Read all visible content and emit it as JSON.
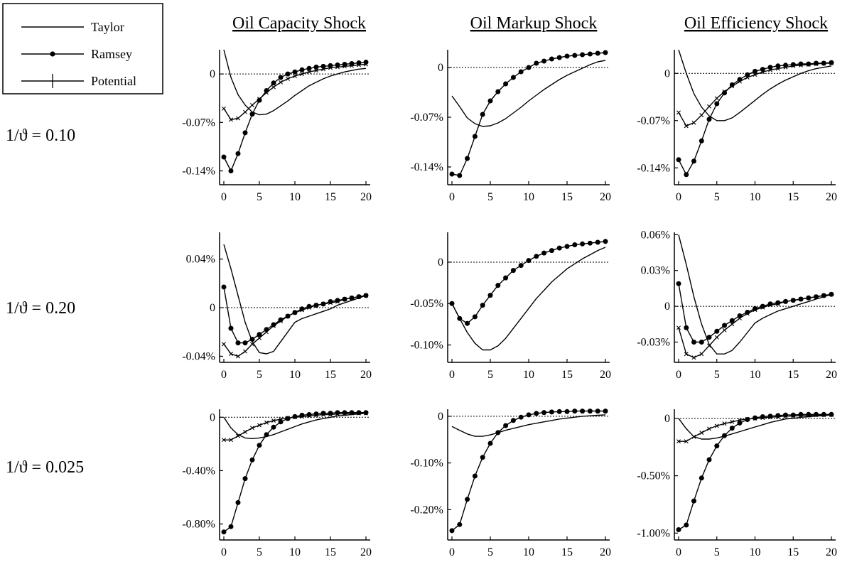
{
  "legend": {
    "items": [
      {
        "label": "Taylor",
        "marker": "none"
      },
      {
        "label": "Ramsey",
        "marker": "dot"
      },
      {
        "label": "Potential",
        "marker": "cross"
      }
    ]
  },
  "columns": [
    "Oil Capacity Shock",
    "Oil Markup Shock",
    "Oil Efficiency Shock"
  ],
  "rows": [
    "1/ϑ = 0.10",
    "1/ϑ = 0.20",
    "1/ϑ = 0.025"
  ],
  "chart_data": [
    {
      "type": "line",
      "row": 0,
      "col": 0,
      "x": [
        0,
        1,
        2,
        3,
        4,
        5,
        6,
        7,
        8,
        9,
        10,
        11,
        12,
        13,
        14,
        15,
        16,
        17,
        18,
        19,
        20
      ],
      "ylim": [
        -0.16,
        0.035
      ],
      "yticks": [
        0,
        -0.07,
        -0.14
      ],
      "yticklabels": [
        "0",
        "-0.07%",
        "-0.14%"
      ],
      "xticks": [
        0,
        5,
        10,
        15,
        20
      ],
      "xticklabels": [
        "0",
        "5",
        "10",
        "15",
        "20"
      ],
      "series": [
        {
          "name": "Taylor",
          "values": [
            0.035,
            -0.005,
            -0.03,
            -0.045,
            -0.055,
            -0.059,
            -0.058,
            -0.053,
            -0.046,
            -0.039,
            -0.031,
            -0.024,
            -0.017,
            -0.012,
            -0.007,
            -0.003,
            0.0,
            0.003,
            0.005,
            0.007,
            0.008
          ]
        },
        {
          "name": "Ramsey",
          "values": [
            -0.12,
            -0.14,
            -0.115,
            -0.085,
            -0.058,
            -0.038,
            -0.024,
            -0.013,
            -0.005,
            0.0,
            0.003,
            0.006,
            0.008,
            0.01,
            0.011,
            0.012,
            0.013,
            0.014,
            0.015,
            0.016,
            0.017
          ]
        },
        {
          "name": "Potential",
          "values": [
            -0.05,
            -0.066,
            -0.064,
            -0.055,
            -0.045,
            -0.036,
            -0.027,
            -0.019,
            -0.012,
            -0.007,
            -0.003,
            0.0,
            0.003,
            0.005,
            0.007,
            0.009,
            0.01,
            0.011,
            0.012,
            0.013,
            0.014
          ]
        }
      ]
    },
    {
      "type": "line",
      "row": 0,
      "col": 1,
      "x": [
        0,
        1,
        2,
        3,
        4,
        5,
        6,
        7,
        8,
        9,
        10,
        11,
        12,
        13,
        14,
        15,
        16,
        17,
        18,
        19,
        20
      ],
      "ylim": [
        -0.165,
        0.025
      ],
      "yticks": [
        0,
        -0.07,
        -0.14
      ],
      "yticklabels": [
        "0",
        "-0.07%",
        "-0.14%"
      ],
      "xticks": [
        0,
        5,
        10,
        15,
        20
      ],
      "xticklabels": [
        "0",
        "5",
        "10",
        "15",
        "20"
      ],
      "series": [
        {
          "name": "Taylor",
          "values": [
            -0.04,
            -0.055,
            -0.071,
            -0.079,
            -0.083,
            -0.082,
            -0.078,
            -0.072,
            -0.064,
            -0.056,
            -0.047,
            -0.039,
            -0.031,
            -0.024,
            -0.017,
            -0.011,
            -0.006,
            -0.001,
            0.004,
            0.008,
            0.01
          ]
        },
        {
          "name": "Ramsey",
          "values": [
            -0.15,
            -0.152,
            -0.128,
            -0.097,
            -0.066,
            -0.047,
            -0.034,
            -0.023,
            -0.014,
            -0.006,
            0.0,
            0.006,
            0.009,
            0.012,
            0.014,
            0.016,
            0.017,
            0.018,
            0.019,
            0.02,
            0.021
          ]
        }
      ]
    },
    {
      "type": "line",
      "row": 0,
      "col": 2,
      "x": [
        0,
        1,
        2,
        3,
        4,
        5,
        6,
        7,
        8,
        9,
        10,
        11,
        12,
        13,
        14,
        15,
        16,
        17,
        18,
        19,
        20
      ],
      "ylim": [
        -0.165,
        0.035
      ],
      "yticks": [
        0,
        -0.07,
        -0.14
      ],
      "yticklabels": [
        "0",
        "-0.07%",
        "-0.14%"
      ],
      "xticks": [
        0,
        5,
        10,
        15,
        20
      ],
      "xticklabels": [
        "0",
        "5",
        "10",
        "15",
        "20"
      ],
      "series": [
        {
          "name": "Taylor",
          "values": [
            0.035,
            0.0,
            -0.03,
            -0.05,
            -0.063,
            -0.07,
            -0.07,
            -0.066,
            -0.058,
            -0.049,
            -0.04,
            -0.031,
            -0.023,
            -0.016,
            -0.01,
            -0.005,
            0.0,
            0.004,
            0.007,
            0.009,
            0.011
          ]
        },
        {
          "name": "Ramsey",
          "values": [
            -0.128,
            -0.15,
            -0.13,
            -0.1,
            -0.068,
            -0.045,
            -0.029,
            -0.017,
            -0.009,
            -0.002,
            0.003,
            0.006,
            0.009,
            0.011,
            0.012,
            0.013,
            0.014,
            0.014,
            0.015,
            0.015,
            0.016
          ]
        },
        {
          "name": "Potential",
          "values": [
            -0.058,
            -0.078,
            -0.073,
            -0.062,
            -0.049,
            -0.037,
            -0.027,
            -0.019,
            -0.012,
            -0.006,
            -0.002,
            0.002,
            0.005,
            0.007,
            0.009,
            0.011,
            0.012,
            0.013,
            0.014,
            0.015,
            0.015
          ]
        }
      ]
    },
    {
      "type": "line",
      "row": 1,
      "col": 0,
      "x": [
        0,
        1,
        2,
        3,
        4,
        5,
        6,
        7,
        8,
        9,
        10,
        11,
        12,
        13,
        14,
        15,
        16,
        17,
        18,
        19,
        20
      ],
      "ylim": [
        -0.045,
        0.062
      ],
      "yticks": [
        0.04,
        0,
        -0.04
      ],
      "yticklabels": [
        "0.04%",
        "0",
        "-0.04%"
      ],
      "xticks": [
        0,
        5,
        10,
        15,
        20
      ],
      "xticklabels": [
        "0",
        "5",
        "10",
        "15",
        "20"
      ],
      "series": [
        {
          "name": "Taylor",
          "values": [
            0.052,
            0.032,
            0.01,
            -0.012,
            -0.028,
            -0.037,
            -0.038,
            -0.036,
            -0.028,
            -0.02,
            -0.012,
            -0.009,
            -0.007,
            -0.005,
            -0.003,
            -0.001,
            0.002,
            0.004,
            0.006,
            0.008,
            0.01
          ]
        },
        {
          "name": "Ramsey",
          "values": [
            0.017,
            -0.017,
            -0.029,
            -0.029,
            -0.026,
            -0.022,
            -0.018,
            -0.014,
            -0.01,
            -0.007,
            -0.004,
            -0.001,
            0.001,
            0.002,
            0.003,
            0.005,
            0.006,
            0.007,
            0.008,
            0.009,
            0.01
          ]
        },
        {
          "name": "Potential",
          "values": [
            -0.03,
            -0.038,
            -0.04,
            -0.036,
            -0.03,
            -0.025,
            -0.02,
            -0.015,
            -0.011,
            -0.007,
            -0.004,
            -0.002,
            0.0,
            0.002,
            0.003,
            0.004,
            0.005,
            0.007,
            0.008,
            0.009,
            0.01
          ]
        }
      ]
    },
    {
      "type": "line",
      "row": 1,
      "col": 1,
      "x": [
        0,
        1,
        2,
        3,
        4,
        5,
        6,
        7,
        8,
        9,
        10,
        11,
        12,
        13,
        14,
        15,
        16,
        17,
        18,
        19,
        20
      ],
      "ylim": [
        -0.121,
        0.036
      ],
      "yticks": [
        0,
        -0.05,
        -0.1
      ],
      "yticklabels": [
        "0",
        "-0.05%",
        "-0.10%"
      ],
      "xticks": [
        0,
        5,
        10,
        15,
        20
      ],
      "xticklabels": [
        "0",
        "5",
        "10",
        "15",
        "20"
      ],
      "series": [
        {
          "name": "Taylor",
          "values": [
            -0.05,
            -0.068,
            -0.085,
            -0.098,
            -0.106,
            -0.106,
            -0.101,
            -0.092,
            -0.08,
            -0.068,
            -0.056,
            -0.044,
            -0.034,
            -0.024,
            -0.016,
            -0.008,
            -0.002,
            0.004,
            0.009,
            0.014,
            0.018
          ]
        },
        {
          "name": "Ramsey",
          "values": [
            -0.05,
            -0.068,
            -0.074,
            -0.066,
            -0.052,
            -0.04,
            -0.028,
            -0.019,
            -0.01,
            -0.004,
            0.002,
            0.007,
            0.011,
            0.014,
            0.017,
            0.019,
            0.021,
            0.022,
            0.023,
            0.024,
            0.025
          ]
        }
      ]
    },
    {
      "type": "line",
      "row": 1,
      "col": 2,
      "x": [
        0,
        1,
        2,
        3,
        4,
        5,
        6,
        7,
        8,
        9,
        10,
        11,
        12,
        13,
        14,
        15,
        16,
        17,
        18,
        19,
        20
      ],
      "ylim": [
        -0.047,
        0.062
      ],
      "yticks": [
        0.06,
        0.03,
        0,
        -0.03
      ],
      "yticklabels": [
        "0.06%",
        "0.03%",
        "0",
        "-0.03%"
      ],
      "xticks": [
        0,
        5,
        10,
        15,
        20
      ],
      "xticklabels": [
        "0",
        "5",
        "10",
        "15",
        "20"
      ],
      "series": [
        {
          "name": "Taylor",
          "values": [
            0.06,
            0.035,
            0.008,
            -0.015,
            -0.032,
            -0.04,
            -0.04,
            -0.037,
            -0.03,
            -0.022,
            -0.014,
            -0.01,
            -0.007,
            -0.004,
            -0.002,
            0.0,
            0.002,
            0.004,
            0.006,
            0.008,
            0.01
          ]
        },
        {
          "name": "Ramsey",
          "values": [
            0.019,
            -0.018,
            -0.03,
            -0.03,
            -0.026,
            -0.021,
            -0.016,
            -0.012,
            -0.008,
            -0.005,
            -0.002,
            0.0,
            0.002,
            0.003,
            0.004,
            0.005,
            0.006,
            0.007,
            0.008,
            0.009,
            0.01
          ]
        },
        {
          "name": "Potential",
          "values": [
            -0.018,
            -0.04,
            -0.043,
            -0.04,
            -0.033,
            -0.026,
            -0.02,
            -0.015,
            -0.01,
            -0.006,
            -0.003,
            -0.001,
            0.001,
            0.002,
            0.004,
            0.005,
            0.006,
            0.007,
            0.008,
            0.009,
            0.01
          ]
        }
      ]
    },
    {
      "type": "line",
      "row": 2,
      "col": 0,
      "x": [
        0,
        1,
        2,
        3,
        4,
        5,
        6,
        7,
        8,
        9,
        10,
        11,
        12,
        13,
        14,
        15,
        16,
        17,
        18,
        19,
        20
      ],
      "ylim": [
        -0.92,
        0.06
      ],
      "yticks": [
        0,
        -0.4,
        -0.8
      ],
      "yticklabels": [
        "0",
        "-0.40%",
        "-0.80%"
      ],
      "xticks": [
        0,
        5,
        10,
        15,
        20
      ],
      "xticklabels": [
        "0",
        "5",
        "10",
        "15",
        "20"
      ],
      "series": [
        {
          "name": "Taylor",
          "values": [
            0.0,
            -0.08,
            -0.13,
            -0.155,
            -0.16,
            -0.155,
            -0.145,
            -0.13,
            -0.11,
            -0.09,
            -0.07,
            -0.05,
            -0.035,
            -0.02,
            -0.01,
            0.0,
            0.01,
            0.015,
            0.02,
            0.025,
            0.03
          ]
        },
        {
          "name": "Ramsey",
          "values": [
            -0.86,
            -0.82,
            -0.64,
            -0.46,
            -0.32,
            -0.21,
            -0.13,
            -0.075,
            -0.035,
            -0.01,
            0.005,
            0.015,
            0.02,
            0.025,
            0.03,
            0.03,
            0.035,
            0.035,
            0.035,
            0.035,
            0.035
          ]
        },
        {
          "name": "Potential",
          "values": [
            -0.17,
            -0.17,
            -0.14,
            -0.11,
            -0.08,
            -0.06,
            -0.04,
            -0.025,
            -0.015,
            -0.005,
            0.0,
            0.005,
            0.01,
            0.015,
            0.02,
            0.02,
            0.025,
            0.025,
            0.03,
            0.03,
            0.03
          ]
        }
      ]
    },
    {
      "type": "line",
      "row": 2,
      "col": 1,
      "x": [
        0,
        1,
        2,
        3,
        4,
        5,
        6,
        7,
        8,
        9,
        10,
        11,
        12,
        13,
        14,
        15,
        16,
        17,
        18,
        19,
        20
      ],
      "ylim": [
        -0.265,
        0.015
      ],
      "yticks": [
        0,
        -0.1,
        -0.2
      ],
      "yticklabels": [
        "0",
        "-0.10%",
        "-0.20%"
      ],
      "xticks": [
        0,
        5,
        10,
        15,
        20
      ],
      "xticklabels": [
        "0",
        "5",
        "10",
        "15",
        "20"
      ],
      "series": [
        {
          "name": "Taylor",
          "values": [
            -0.022,
            -0.03,
            -0.038,
            -0.043,
            -0.043,
            -0.04,
            -0.035,
            -0.03,
            -0.026,
            -0.022,
            -0.018,
            -0.015,
            -0.012,
            -0.009,
            -0.006,
            -0.004,
            -0.002,
            0.0,
            0.001,
            0.002,
            0.003
          ]
        },
        {
          "name": "Ramsey",
          "values": [
            -0.245,
            -0.232,
            -0.178,
            -0.128,
            -0.088,
            -0.058,
            -0.035,
            -0.02,
            -0.009,
            -0.002,
            0.003,
            0.006,
            0.008,
            0.009,
            0.01,
            0.01,
            0.011,
            0.011,
            0.011,
            0.011,
            0.011
          ]
        }
      ]
    },
    {
      "type": "line",
      "row": 2,
      "col": 2,
      "x": [
        0,
        1,
        2,
        3,
        4,
        5,
        6,
        7,
        8,
        9,
        10,
        11,
        12,
        13,
        14,
        15,
        16,
        17,
        18,
        19,
        20
      ],
      "ylim": [
        -1.06,
        0.08
      ],
      "yticks": [
        0,
        -0.5,
        -1.0
      ],
      "yticklabels": [
        "0",
        "-0.50%",
        "-1.00%"
      ],
      "xticks": [
        0,
        5,
        10,
        15,
        20
      ],
      "xticklabels": [
        "0",
        "5",
        "10",
        "15",
        "20"
      ],
      "series": [
        {
          "name": "Taylor",
          "values": [
            0.0,
            -0.09,
            -0.16,
            -0.18,
            -0.18,
            -0.17,
            -0.155,
            -0.135,
            -0.115,
            -0.095,
            -0.075,
            -0.055,
            -0.035,
            -0.02,
            -0.005,
            0.0,
            0.01,
            0.015,
            0.02,
            0.025,
            0.03
          ]
        },
        {
          "name": "Ramsey",
          "values": [
            -0.97,
            -0.93,
            -0.72,
            -0.52,
            -0.36,
            -0.24,
            -0.15,
            -0.085,
            -0.04,
            -0.01,
            0.005,
            0.015,
            0.02,
            0.025,
            0.03,
            0.03,
            0.035,
            0.035,
            0.035,
            0.035,
            0.035
          ]
        },
        {
          "name": "Potential",
          "values": [
            -0.2,
            -0.2,
            -0.16,
            -0.125,
            -0.09,
            -0.065,
            -0.045,
            -0.03,
            -0.015,
            -0.005,
            0.0,
            0.005,
            0.01,
            0.015,
            0.02,
            0.02,
            0.025,
            0.025,
            0.03,
            0.03,
            0.03
          ]
        }
      ]
    }
  ]
}
